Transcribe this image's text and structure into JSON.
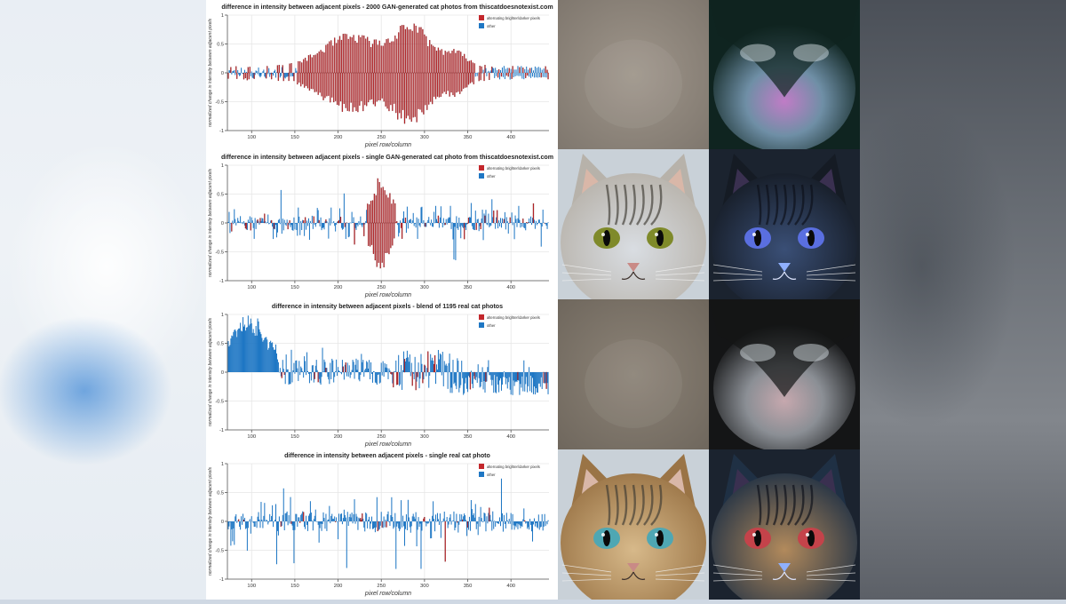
{
  "chart_data": [
    {
      "type": "bar",
      "title": "difference in intensity between adjacent pixels - 2000 GAN-generated cat photos from thiscatdoesnotexist.com",
      "xlabel": "pixel row/column",
      "ylabel": "normalized change in intensity between adjacent pixels",
      "xlim": [
        72,
        444
      ],
      "ylim": [
        -1,
        1
      ],
      "xticks": [
        100,
        150,
        200,
        250,
        300,
        350,
        400
      ],
      "yticks": [
        -1,
        -0.5,
        0,
        0.5,
        1
      ],
      "grid": true,
      "legend_position": "top-right",
      "legend": [
        "alternating brighter/darker pixels",
        "other"
      ],
      "colors": {
        "alternating": "#c3272c",
        "other": "#1f77c4"
      },
      "pattern": "gan-mean",
      "seed": 11
    },
    {
      "type": "bar",
      "title": "difference in intensity between adjacent pixels - single GAN-generated cat photo from thiscatdoesnotexist.com",
      "xlabel": "pixel row/column",
      "ylabel": "normalized change in intensity between adjacent pixels",
      "xlim": [
        72,
        444
      ],
      "ylim": [
        -1,
        1
      ],
      "xticks": [
        100,
        150,
        200,
        250,
        300,
        350,
        400
      ],
      "yticks": [
        -1,
        -0.5,
        0,
        0.5,
        1
      ],
      "grid": true,
      "legend_position": "top-right",
      "legend": [
        "alternating brighter/darker pixels",
        "other"
      ],
      "colors": {
        "alternating": "#c3272c",
        "other": "#1f77c4"
      },
      "pattern": "gan-single",
      "seed": 23
    },
    {
      "type": "bar",
      "title": "difference in intensity between adjacent pixels - blend of 1195 real cat photos",
      "xlabel": "pixel row/column",
      "ylabel": "normalized change in intensity between adjacent pixels",
      "xlim": [
        72,
        444
      ],
      "ylim": [
        -1,
        1
      ],
      "xticks": [
        100,
        150,
        200,
        250,
        300,
        350,
        400
      ],
      "yticks": [
        -1,
        -0.5,
        0,
        0.5,
        1
      ],
      "grid": true,
      "legend_position": "top-right",
      "legend": [
        "alternating brighter/darker pixels",
        "other"
      ],
      "colors": {
        "alternating": "#c3272c",
        "other": "#1f77c4"
      },
      "pattern": "real-mean",
      "seed": 37
    },
    {
      "type": "bar",
      "title": "difference in intensity between adjacent pixels - single real cat photo",
      "xlabel": "pixel row/column",
      "ylabel": "normalized change in intensity between adjacent pixels",
      "xlim": [
        72,
        444
      ],
      "ylim": [
        -1,
        1
      ],
      "xticks": [
        100,
        150,
        200,
        250,
        300,
        350,
        400
      ],
      "yticks": [
        -1,
        -0.5,
        0,
        0.5,
        1
      ],
      "grid": true,
      "legend_position": "top-right",
      "legend": [
        "alternating brighter/darker pixels",
        "other"
      ],
      "colors": {
        "alternating": "#c3272c",
        "other": "#1f77c4"
      },
      "pattern": "real-single",
      "seed": 53
    }
  ],
  "photos": [
    {
      "name": "gan-average-photo",
      "kind": "blur",
      "colors": [
        "#9f968b",
        "#7f776e"
      ]
    },
    {
      "name": "gan-average-enhanced",
      "kind": "enhanced",
      "colors": [
        "#0f2420",
        "#6f8fa6",
        "#c07cc6"
      ]
    },
    {
      "name": "gan-single-cat-photo",
      "kind": "cat",
      "colors": [
        "#b7b2aa",
        "#d9dde2",
        "#7f8a2a"
      ]
    },
    {
      "name": "gan-single-cat-enhanced",
      "kind": "cat-dark",
      "colors": [
        "#151b24",
        "#3a4f76",
        "#5a6fe0"
      ]
    },
    {
      "name": "real-average-photo",
      "kind": "blur",
      "colors": [
        "#8c8377",
        "#6f675d"
      ]
    },
    {
      "name": "real-average-enhanced",
      "kind": "enhanced",
      "colors": [
        "#141516",
        "#8b8f95",
        "#c6a8ae"
      ]
    },
    {
      "name": "real-single-cat-photo",
      "kind": "kitten",
      "colors": [
        "#9a7446",
        "#d7b98a",
        "#4fa7b3"
      ]
    },
    {
      "name": "real-single-cat-enhanced",
      "kind": "kitten-dark",
      "colors": [
        "#1f3044",
        "#b28a5c",
        "#c4434a"
      ]
    }
  ]
}
